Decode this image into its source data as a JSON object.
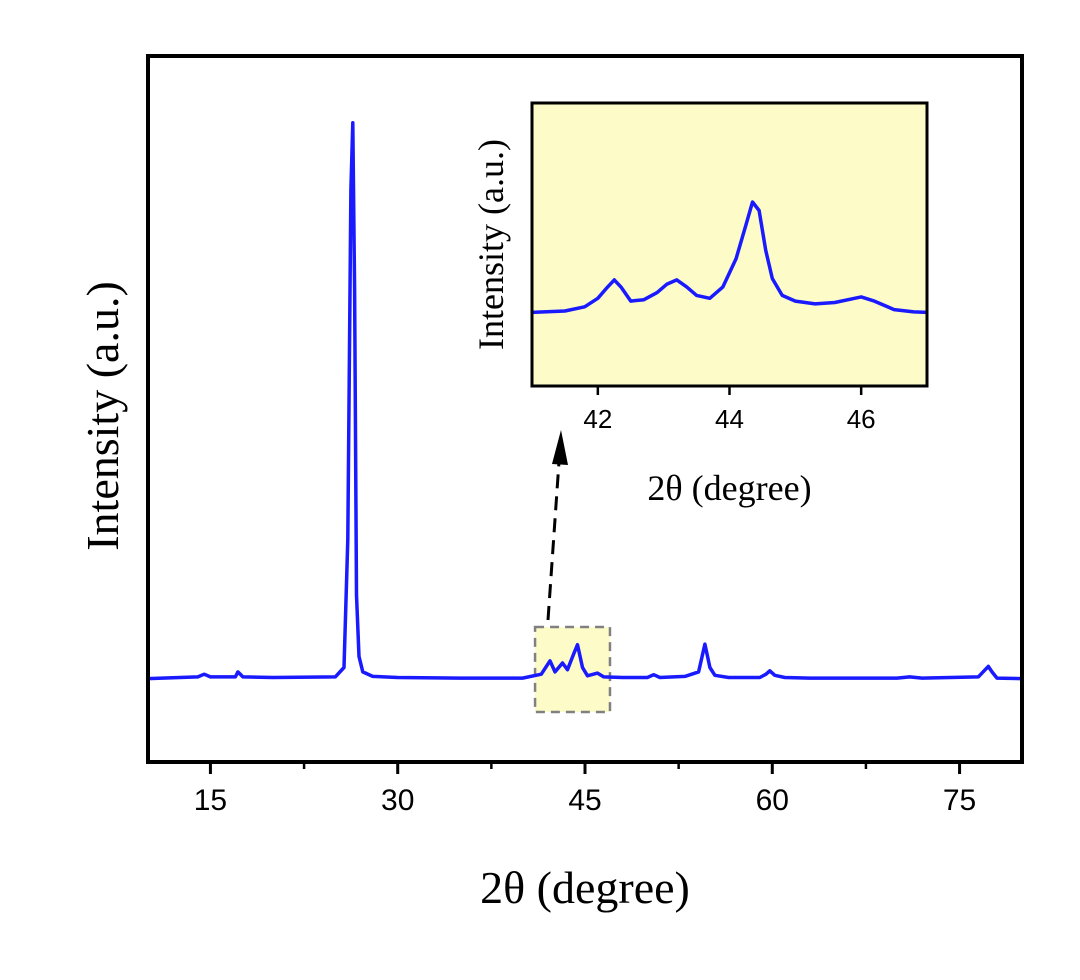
{
  "chart_data": [
    {
      "type": "line",
      "xlabel": "2θ (degree)",
      "ylabel": "Intensity (a.u.)",
      "xlim": [
        10,
        80
      ],
      "ylim": [
        -0.15,
        1.12
      ],
      "xticks": [
        15,
        30,
        45,
        60,
        75
      ],
      "grid": false,
      "series": [
        {
          "color": "#1a1aff",
          "x": [
            10,
            14,
            14.5,
            15,
            17,
            17.2,
            17.6,
            20,
            25,
            25.7,
            26.0,
            26.25,
            26.4,
            26.55,
            26.7,
            26.9,
            27.2,
            28,
            30,
            35,
            40,
            41.5,
            42.2,
            42.6,
            43.2,
            43.6,
            44.1,
            44.4,
            44.8,
            45.2,
            46.0,
            46.5,
            48,
            50,
            50.5,
            51,
            53,
            54.1,
            54.6,
            55.0,
            55.4,
            56.5,
            59,
            59.5,
            59.8,
            60.2,
            61,
            63,
            70,
            71,
            72,
            76.5,
            77.3,
            77.6,
            78,
            80
          ],
          "y": [
            0.0,
            0.003,
            0.008,
            0.003,
            0.003,
            0.012,
            0.003,
            0.002,
            0.003,
            0.02,
            0.25,
            0.88,
            1.0,
            0.7,
            0.15,
            0.04,
            0.012,
            0.004,
            0.002,
            0.001,
            0.001,
            0.008,
            0.032,
            0.012,
            0.028,
            0.016,
            0.045,
            0.061,
            0.02,
            0.005,
            0.01,
            0.003,
            0.002,
            0.002,
            0.007,
            0.002,
            0.004,
            0.012,
            0.062,
            0.02,
            0.006,
            0.002,
            0.002,
            0.008,
            0.014,
            0.006,
            0.002,
            0.001,
            0.001,
            0.003,
            0.001,
            0.003,
            0.022,
            0.012,
            0.001,
            0.0
          ]
        }
      ]
    },
    {
      "type": "line",
      "xlabel": "2θ (degree)",
      "ylabel": "Intensity (a.u.)",
      "xlim": [
        41,
        47
      ],
      "ylim": [
        0,
        1
      ],
      "xticks": [
        42,
        44,
        46
      ],
      "grid": false,
      "background": "#fdfbc8",
      "series": [
        {
          "color": "#1a1aff",
          "x": [
            41.0,
            41.5,
            41.8,
            42.0,
            42.15,
            42.25,
            42.35,
            42.5,
            42.7,
            42.9,
            43.05,
            43.2,
            43.35,
            43.5,
            43.7,
            43.9,
            44.1,
            44.25,
            44.35,
            44.45,
            44.55,
            44.65,
            44.8,
            45.0,
            45.3,
            45.6,
            45.9,
            46.0,
            46.2,
            46.5,
            46.8,
            47.0
          ],
          "y": [
            0.26,
            0.265,
            0.28,
            0.31,
            0.35,
            0.375,
            0.35,
            0.3,
            0.305,
            0.33,
            0.36,
            0.375,
            0.35,
            0.32,
            0.31,
            0.35,
            0.45,
            0.57,
            0.65,
            0.62,
            0.48,
            0.38,
            0.32,
            0.3,
            0.29,
            0.295,
            0.31,
            0.315,
            0.3,
            0.27,
            0.262,
            0.26
          ]
        }
      ]
    }
  ]
}
